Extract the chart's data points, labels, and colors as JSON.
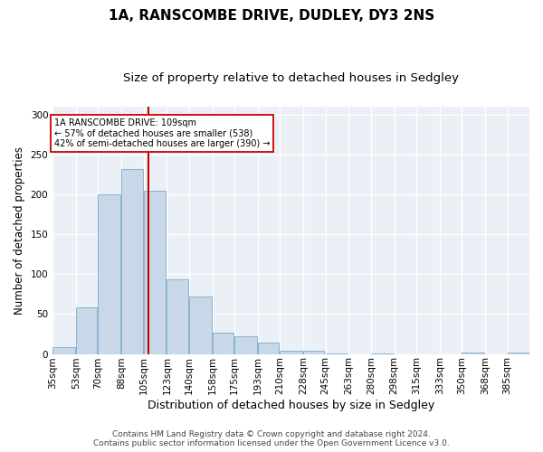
{
  "title1": "1A, RANSCOMBE DRIVE, DUDLEY, DY3 2NS",
  "title2": "Size of property relative to detached houses in Sedgley",
  "xlabel": "Distribution of detached houses by size in Sedgley",
  "ylabel": "Number of detached properties",
  "bin_edges": [
    35,
    53,
    70,
    88,
    105,
    123,
    140,
    158,
    175,
    193,
    210,
    228,
    245,
    263,
    280,
    298,
    315,
    333,
    350,
    368,
    385
  ],
  "bar_heights": [
    9,
    58,
    200,
    232,
    204,
    94,
    72,
    27,
    22,
    14,
    4,
    4,
    1,
    0,
    1,
    0,
    0,
    0,
    2,
    0,
    2
  ],
  "bar_color": "#c8d8e8",
  "bar_edge_color": "#7aaac8",
  "property_size": 109,
  "vline_color": "#cc0000",
  "annotation_line1": "1A RANSCOMBE DRIVE: 109sqm",
  "annotation_line2": "← 57% of detached houses are smaller (538)",
  "annotation_line3": "42% of semi-detached houses are larger (390) →",
  "annotation_box_color": "#cc0000",
  "background_color": "#eaf0f6",
  "grid_color": "#ffffff",
  "ylim": [
    0,
    310
  ],
  "yticks": [
    0,
    50,
    100,
    150,
    200,
    250,
    300
  ],
  "footer_text": "Contains HM Land Registry data © Crown copyright and database right 2024.\nContains public sector information licensed under the Open Government Licence v3.0.",
  "title1_fontsize": 11,
  "title2_fontsize": 9.5,
  "xlabel_fontsize": 9,
  "ylabel_fontsize": 8.5,
  "tick_fontsize": 7.5,
  "footer_fontsize": 6.5
}
